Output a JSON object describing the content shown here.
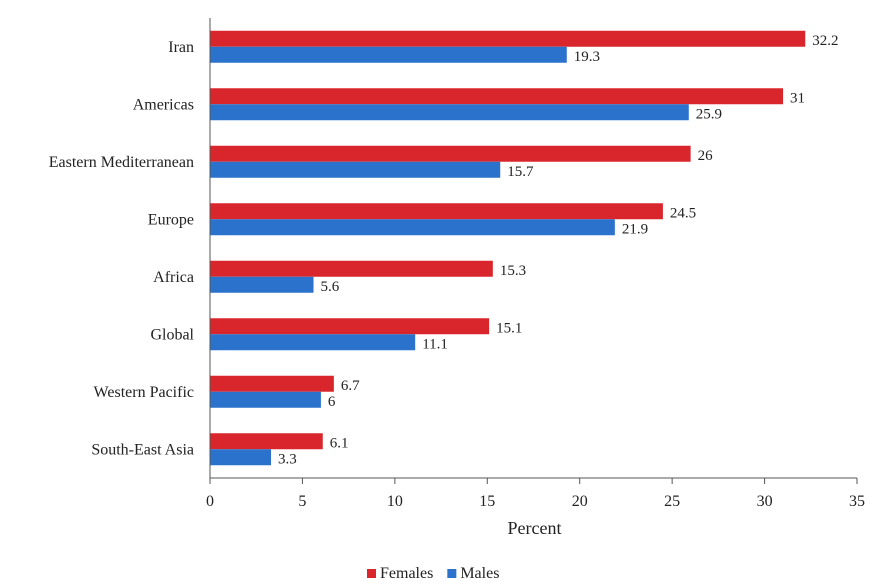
{
  "chart_data": {
    "type": "bar",
    "orientation": "horizontal",
    "categories": [
      "Iran",
      "Americas",
      "Eastern Mediterranean",
      "Europe",
      "Africa",
      "Global",
      "Western Pacific",
      "South-East Asia"
    ],
    "series": [
      {
        "name": "Females",
        "color": "#d9262c",
        "values": [
          32.2,
          31,
          26,
          24.5,
          15.3,
          15.1,
          6.7,
          6.1
        ]
      },
      {
        "name": "Males",
        "color": "#2a72cc",
        "values": [
          19.3,
          25.9,
          15.7,
          21.9,
          5.6,
          11.1,
          6,
          3.3
        ]
      }
    ],
    "xlabel": "Percent",
    "xlim": [
      0,
      35
    ],
    "xticks": [
      0,
      5,
      10,
      15,
      20,
      25,
      30,
      35
    ],
    "grid": false,
    "legend_position": "bottom"
  }
}
